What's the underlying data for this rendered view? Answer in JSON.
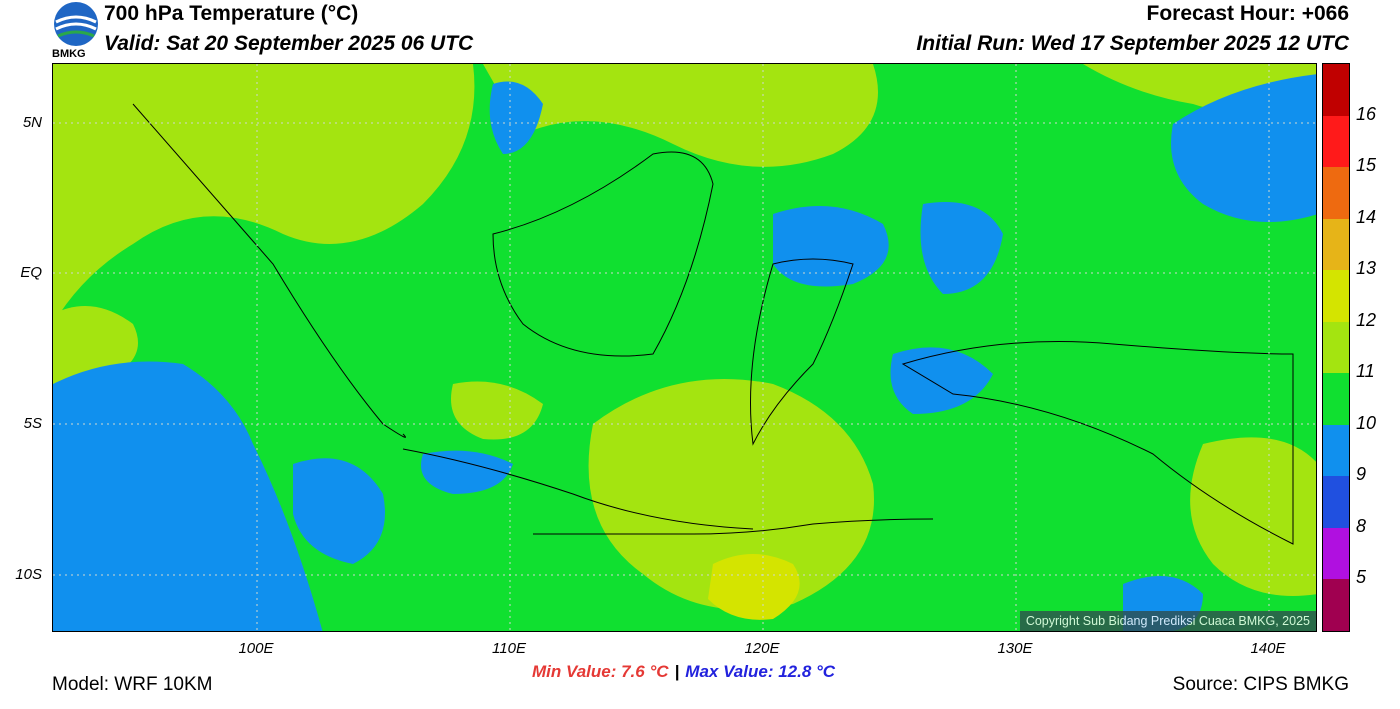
{
  "header": {
    "title": "700 hPa Temperature (°C)",
    "valid": "Valid: Sat 20 September 2025 06 UTC",
    "forecast_hour": "Forecast Hour: +066",
    "initial_run": "Initial Run: Wed 17 September 2025 12 UTC",
    "logo_text": "BMKG"
  },
  "map": {
    "lat_labels": [
      "5N",
      "EQ",
      "5S",
      "10S"
    ],
    "lon_labels": [
      "100E",
      "110E",
      "120E",
      "130E",
      "140E"
    ],
    "copyright": "Copyright Sub Bidang Prediksi Cuaca BMKG, 2025"
  },
  "colorbar": {
    "labels": [
      "16",
      "15",
      "14",
      "13",
      "12",
      "11",
      "10",
      "9",
      "8",
      "5"
    ],
    "colors": [
      "#c00000",
      "#ff1a1a",
      "#ee6a10",
      "#e6b418",
      "#d4e400",
      "#a4e410",
      "#10e030",
      "#1090ee",
      "#2050e0",
      "#b010e0",
      "#a00050"
    ]
  },
  "stats": {
    "min": "Min Value: 7.6 °C",
    "max": "Max Value: 12.8 °C",
    "separator": "|"
  },
  "footer": {
    "model": "Model: WRF 10KM",
    "source": "Source: CIPS BMKG"
  }
}
